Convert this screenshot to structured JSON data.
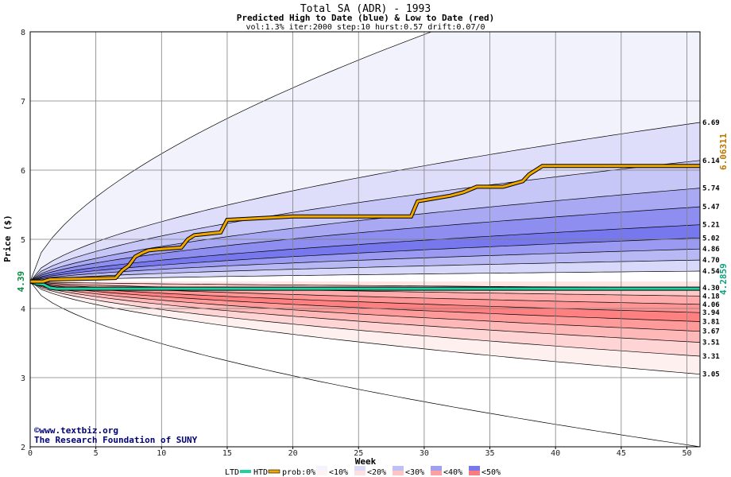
{
  "chart_data": {
    "type": "area",
    "title": "Total SA (ADR) - 1993",
    "subtitle": "Predicted High to Date (blue) &  Low to Date (red)",
    "params": "vol:1.3% iter:2000 step:10 hurst:0.57 drift:0.07/0",
    "xlabel": "Week",
    "ylabel": "Price ($)",
    "xlim": [
      0,
      51
    ],
    "ylim": [
      2,
      8
    ],
    "xticks": [
      0,
      5,
      10,
      15,
      20,
      25,
      30,
      35,
      40,
      45,
      50
    ],
    "yticks": [
      2,
      3,
      4,
      5,
      6,
      7,
      8
    ],
    "grid": true,
    "start_price": 4.39,
    "start_label": "4.39",
    "credit_line1": "©www.textbiz.org",
    "credit_line2": "The Research Foundation of SUNY",
    "high_bands": [
      {
        "label": "6.69",
        "value": 6.69,
        "color": "#f2f2fd"
      },
      {
        "label": "6.14",
        "value": 6.14,
        "color": "#dedefa"
      },
      {
        "label": "5.74",
        "value": 5.74,
        "color": "#c6c6f7"
      },
      {
        "label": "5.47",
        "value": 5.47,
        "color": "#a8a8f3"
      },
      {
        "label": "5.21",
        "value": 5.21,
        "color": "#8e8ef0"
      },
      {
        "label": "5.02",
        "value": 5.02,
        "color": "#7878ee"
      },
      {
        "label": "4.86",
        "value": 4.86,
        "color": "#9a9af2"
      },
      {
        "label": "4.70",
        "value": 4.7,
        "color": "#b8b8f5"
      },
      {
        "label": "4.54",
        "value": 4.54,
        "color": "#d8d8fa"
      }
    ],
    "high_outer_max": 9.3,
    "low_bands": [
      {
        "label": "4.30",
        "value": 4.3,
        "color": "#ffe4e4"
      },
      {
        "label": "4.18",
        "value": 4.18,
        "color": "#ffc8c8"
      },
      {
        "label": "4.06",
        "value": 4.06,
        "color": "#ffabab"
      },
      {
        "label": "3.94",
        "value": 3.94,
        "color": "#ff9494"
      },
      {
        "label": "3.81",
        "value": 3.81,
        "color": "#ff8080"
      },
      {
        "label": "3.67",
        "value": 3.67,
        "color": "#ff9a9a"
      },
      {
        "label": "3.51",
        "value": 3.51,
        "color": "#ffb8b8"
      },
      {
        "label": "3.31",
        "value": 3.31,
        "color": "#ffd4d4"
      },
      {
        "label": "3.05",
        "value": 3.05,
        "color": "#fff0f0"
      }
    ],
    "low_outer_min": 2.0,
    "htd_series": {
      "name": "HTD",
      "color": "#f0a800",
      "end_label": "6.06311",
      "x": [
        0,
        1,
        1.5,
        6.5,
        7,
        7.5,
        8,
        8.5,
        9,
        10,
        11.5,
        12,
        12.5,
        14.5,
        15,
        20,
        29,
        29.5,
        32,
        33,
        34,
        36,
        37.5,
        38,
        38.5,
        39,
        51
      ],
      "y": [
        4.39,
        4.39,
        4.42,
        4.44,
        4.55,
        4.62,
        4.75,
        4.8,
        4.84,
        4.86,
        4.88,
        5.0,
        5.06,
        5.1,
        5.28,
        5.33,
        5.33,
        5.55,
        5.63,
        5.68,
        5.76,
        5.76,
        5.84,
        5.94,
        6.0,
        6.06,
        6.06
      ]
    },
    "ltd_series": {
      "name": "LTD",
      "color": "#20d0a0",
      "end_label": "4.2859",
      "x": [
        0,
        0.5,
        1,
        1.5,
        2,
        51
      ],
      "y": [
        4.39,
        4.36,
        4.35,
        4.3,
        4.286,
        4.286
      ]
    },
    "legend": {
      "ltd": "LTD",
      "htd": "HTD",
      "prob": "prob:0%",
      "items": [
        {
          "label": "<10%",
          "high": "#f4f4fe",
          "low": "#fff4f4"
        },
        {
          "label": "<20%",
          "high": "#dcdcfa",
          "low": "#ffe0e0"
        },
        {
          "label": "<30%",
          "high": "#c0c0f6",
          "low": "#ffc4c4"
        },
        {
          "label": "<40%",
          "high": "#a0a0f2",
          "low": "#ffa0a0"
        },
        {
          "label": "<50%",
          "high": "#7878ee",
          "low": "#ff7c7c"
        }
      ]
    }
  }
}
